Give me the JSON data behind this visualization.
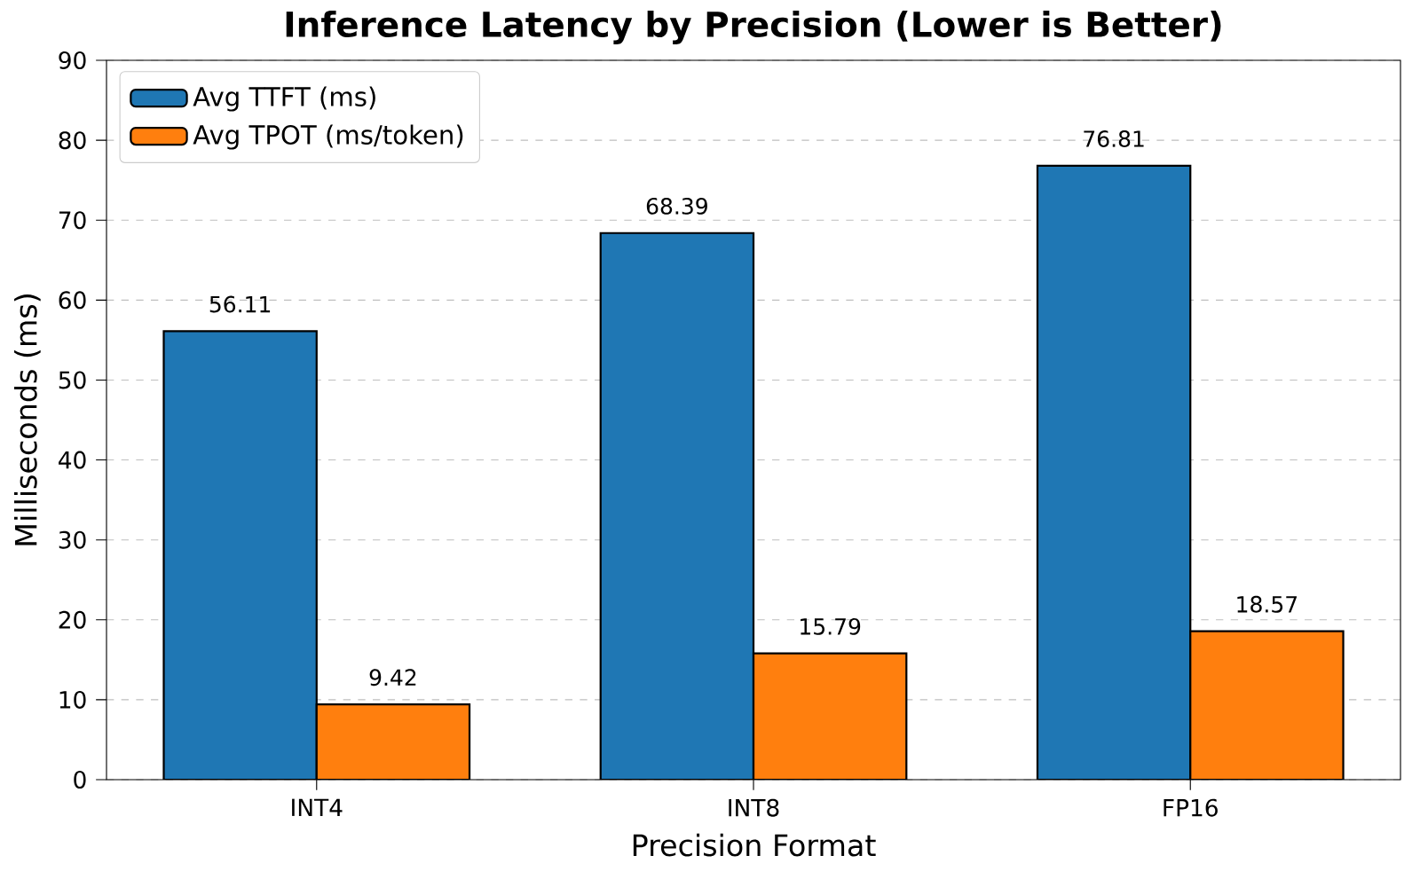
{
  "chart_data": {
    "type": "bar",
    "title": "Inference Latency by Precision (Lower is Better)",
    "xlabel": "Precision Format",
    "ylabel": "Milliseconds (ms)",
    "categories": [
      "INT4",
      "INT8",
      "FP16"
    ],
    "series": [
      {
        "name": "Avg TTFT (ms)",
        "color": "#1f77b4",
        "values": [
          56.11,
          68.39,
          76.81
        ]
      },
      {
        "name": "Avg TPOT (ms/token)",
        "color": "#ff7f0e",
        "values": [
          9.42,
          15.79,
          18.57
        ]
      }
    ],
    "ylim": [
      0,
      90
    ],
    "yticks": [
      0,
      10,
      20,
      30,
      40,
      50,
      60,
      70,
      80,
      90
    ],
    "grid": "y",
    "legend": "top left",
    "data_labels": true
  }
}
